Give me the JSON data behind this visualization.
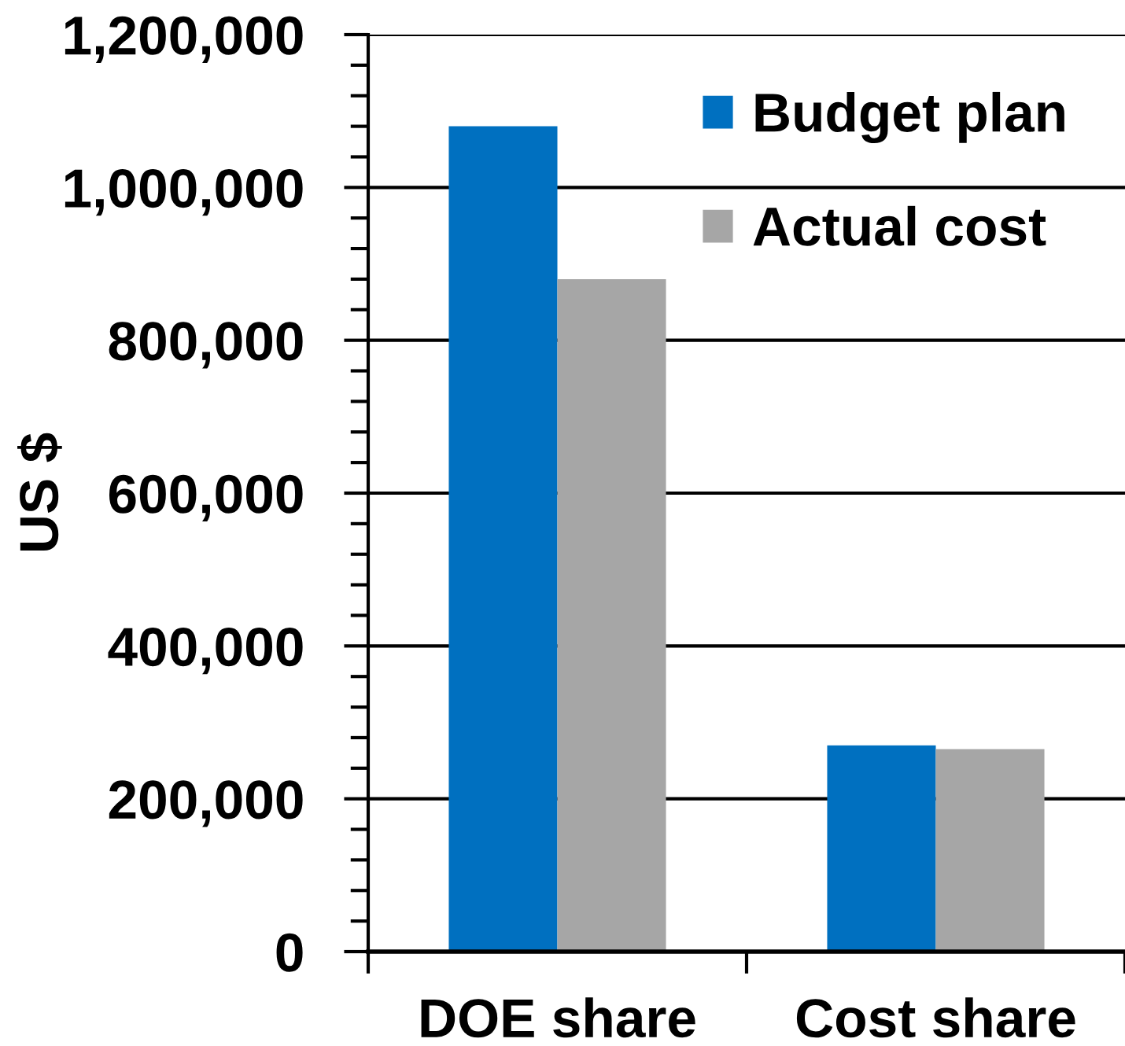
{
  "chart_data": {
    "type": "bar",
    "ylabel": "US $",
    "categories": [
      "DOE share",
      "Cost share"
    ],
    "series": [
      {
        "name": "Budget plan",
        "color": "#0070c0",
        "values": [
          1080000,
          270000
        ]
      },
      {
        "name": "Actual cost",
        "color": "#a6a6a6",
        "values": [
          880000,
          265000
        ]
      }
    ],
    "ylim": [
      0,
      1200000
    ],
    "yticks": [
      0,
      {
        "value": 40000,
        "label": null
      },
      {
        "value": 80000,
        "label": null
      },
      {
        "value": 120000,
        "label": null
      },
      {
        "value": 160000,
        "label": null
      },
      {
        "value": 200000,
        "label": "200,000"
      },
      {
        "value": 240000,
        "label": null
      },
      {
        "value": 280000,
        "label": null
      },
      {
        "value": 320000,
        "label": null
      },
      {
        "value": 360000,
        "label": null
      },
      {
        "value": 400000,
        "label": "400,000"
      },
      {
        "value": 440000,
        "label": null
      },
      {
        "value": 480000,
        "label": null
      },
      {
        "value": 520000,
        "label": null
      },
      {
        "value": 560000,
        "label": null
      },
      {
        "value": 600000,
        "label": "600,000"
      },
      {
        "value": 640000,
        "label": null
      },
      {
        "value": 680000,
        "label": null
      },
      {
        "value": 720000,
        "label": null
      },
      {
        "value": 760000,
        "label": null
      },
      {
        "value": 800000,
        "label": "800,000"
      },
      {
        "value": 840000,
        "label": null
      },
      {
        "value": 880000,
        "label": null
      },
      {
        "value": 920000,
        "label": null
      },
      {
        "value": 960000,
        "label": null
      },
      {
        "value": 1000000,
        "label": "1,000,000"
      },
      {
        "value": 1040000,
        "label": null
      },
      {
        "value": 1080000,
        "label": null
      },
      {
        "value": 1120000,
        "label": null
      },
      {
        "value": 1160000,
        "label": null
      },
      {
        "value": 1200000,
        "label": "1,200,000"
      }
    ],
    "grid": "y",
    "legend": "top right"
  }
}
